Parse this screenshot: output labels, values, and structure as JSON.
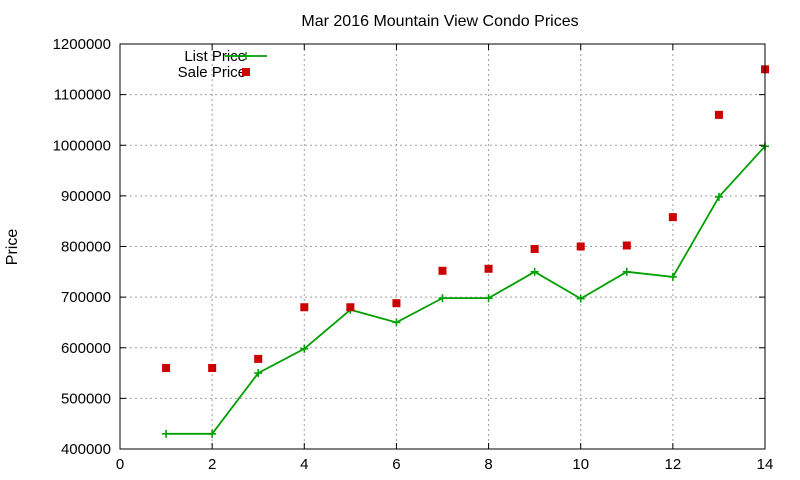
{
  "chart_data": {
    "type": "line",
    "title": "Mar 2016 Mountain View Condo Prices",
    "xlabel": "",
    "ylabel": "Price",
    "xlim": [
      0,
      14
    ],
    "ylim": [
      400000,
      1200000
    ],
    "x_ticks": [
      0,
      2,
      4,
      6,
      8,
      10,
      12,
      14
    ],
    "y_ticks": [
      400000,
      500000,
      600000,
      700000,
      800000,
      900000,
      1000000,
      1100000,
      1200000
    ],
    "x_tick_labels": [
      "0",
      "2",
      "4",
      "6",
      "8",
      "10",
      "12",
      "14"
    ],
    "y_tick_labels": [
      "400000",
      "500000",
      "600000",
      "700000",
      "800000",
      "900000",
      "1000000",
      "1100000",
      "1200000"
    ],
    "grid": true,
    "legend_position": "top-left",
    "series": [
      {
        "name": "List Price",
        "style": "line-with-plus",
        "color": "#00a000",
        "x": [
          1,
          2,
          3,
          4,
          5,
          6,
          7,
          8,
          9,
          10,
          11,
          12,
          13,
          14
        ],
        "y": [
          430000,
          430000,
          550000,
          598000,
          675000,
          650000,
          698000,
          698000,
          750000,
          697000,
          750000,
          740000,
          898000,
          998000
        ]
      },
      {
        "name": "Sale Price",
        "style": "square-points",
        "color": "#cc0000",
        "x": [
          1,
          2,
          3,
          4,
          5,
          6,
          7,
          8,
          9,
          10,
          11,
          12,
          13,
          14
        ],
        "y": [
          560000,
          560000,
          578000,
          680000,
          680000,
          688000,
          752000,
          756000,
          795000,
          800000,
          802000,
          858000,
          1060000,
          1150000
        ]
      }
    ]
  }
}
